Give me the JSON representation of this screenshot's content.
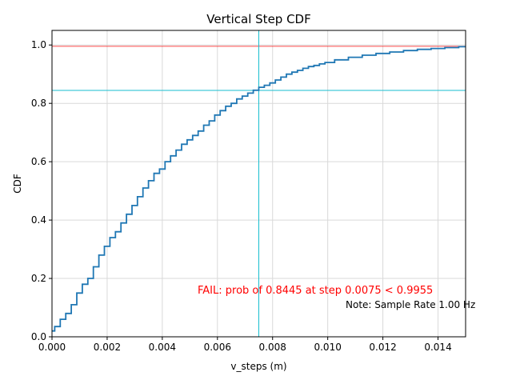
{
  "chart_data": {
    "type": "line",
    "title": "Vertical Step CDF",
    "xlabel": "v_steps (m)",
    "ylabel": "CDF",
    "xlim": [
      0,
      0.015
    ],
    "ylim": [
      0,
      1.05
    ],
    "grid": true,
    "x_ticks": [
      "0.000",
      "0.002",
      "0.004",
      "0.006",
      "0.008",
      "0.010",
      "0.012",
      "0.014"
    ],
    "x_tick_values": [
      0,
      0.002,
      0.004,
      0.006,
      0.008,
      0.01,
      0.012,
      0.014
    ],
    "y_ticks": [
      "0.0",
      "0.2",
      "0.4",
      "0.6",
      "0.8",
      "1.0"
    ],
    "y_tick_values": [
      0,
      0.2,
      0.4,
      0.6,
      0.8,
      1.0
    ],
    "series": [
      {
        "color": "#1f77b4",
        "x": [
          0,
          0.0002,
          0.0004,
          0.0006,
          0.0008,
          0.001,
          0.0012,
          0.0014,
          0.0016,
          0.0018,
          0.002,
          0.0022,
          0.0024,
          0.0026,
          0.0028,
          0.003,
          0.0032,
          0.0034,
          0.0036,
          0.0038,
          0.004,
          0.0042,
          0.0044,
          0.0046,
          0.0048,
          0.005,
          0.0052,
          0.0054,
          0.0056,
          0.0058,
          0.006,
          0.0062,
          0.0064,
          0.0066,
          0.0068,
          0.007,
          0.0072,
          0.0074,
          0.0076,
          0.0078,
          0.008,
          0.0082,
          0.0084,
          0.0086,
          0.0088,
          0.009,
          0.0092,
          0.0094,
          0.0096,
          0.0098,
          0.01,
          0.0105,
          0.011,
          0.0115,
          0.012,
          0.0125,
          0.013,
          0.0135,
          0.014,
          0.0145,
          0.015
        ],
        "y": [
          0.02,
          0.035,
          0.06,
          0.08,
          0.11,
          0.15,
          0.18,
          0.2,
          0.24,
          0.28,
          0.31,
          0.34,
          0.36,
          0.39,
          0.42,
          0.45,
          0.48,
          0.51,
          0.535,
          0.56,
          0.575,
          0.6,
          0.62,
          0.64,
          0.66,
          0.675,
          0.69,
          0.705,
          0.725,
          0.74,
          0.76,
          0.775,
          0.79,
          0.8,
          0.815,
          0.825,
          0.835,
          0.845,
          0.855,
          0.862,
          0.87,
          0.88,
          0.89,
          0.9,
          0.907,
          0.913,
          0.92,
          0.926,
          0.93,
          0.935,
          0.94,
          0.949,
          0.958,
          0.965,
          0.971,
          0.976,
          0.981,
          0.985,
          0.988,
          0.991,
          0.994
        ]
      }
    ],
    "reference_lines": {
      "threshold_y": 0.9955,
      "threshold_color": "#ff0000",
      "step_x": 0.0075,
      "prob_y": 0.8445,
      "crosshair_color": "#17becf"
    },
    "annotations": {
      "fail_text": "FAIL: prob of 0.8445 at step 0.0075 < 0.9955",
      "fail_color": "#ff0000",
      "note_text": "Note: Sample Rate 1.00 Hz"
    }
  }
}
